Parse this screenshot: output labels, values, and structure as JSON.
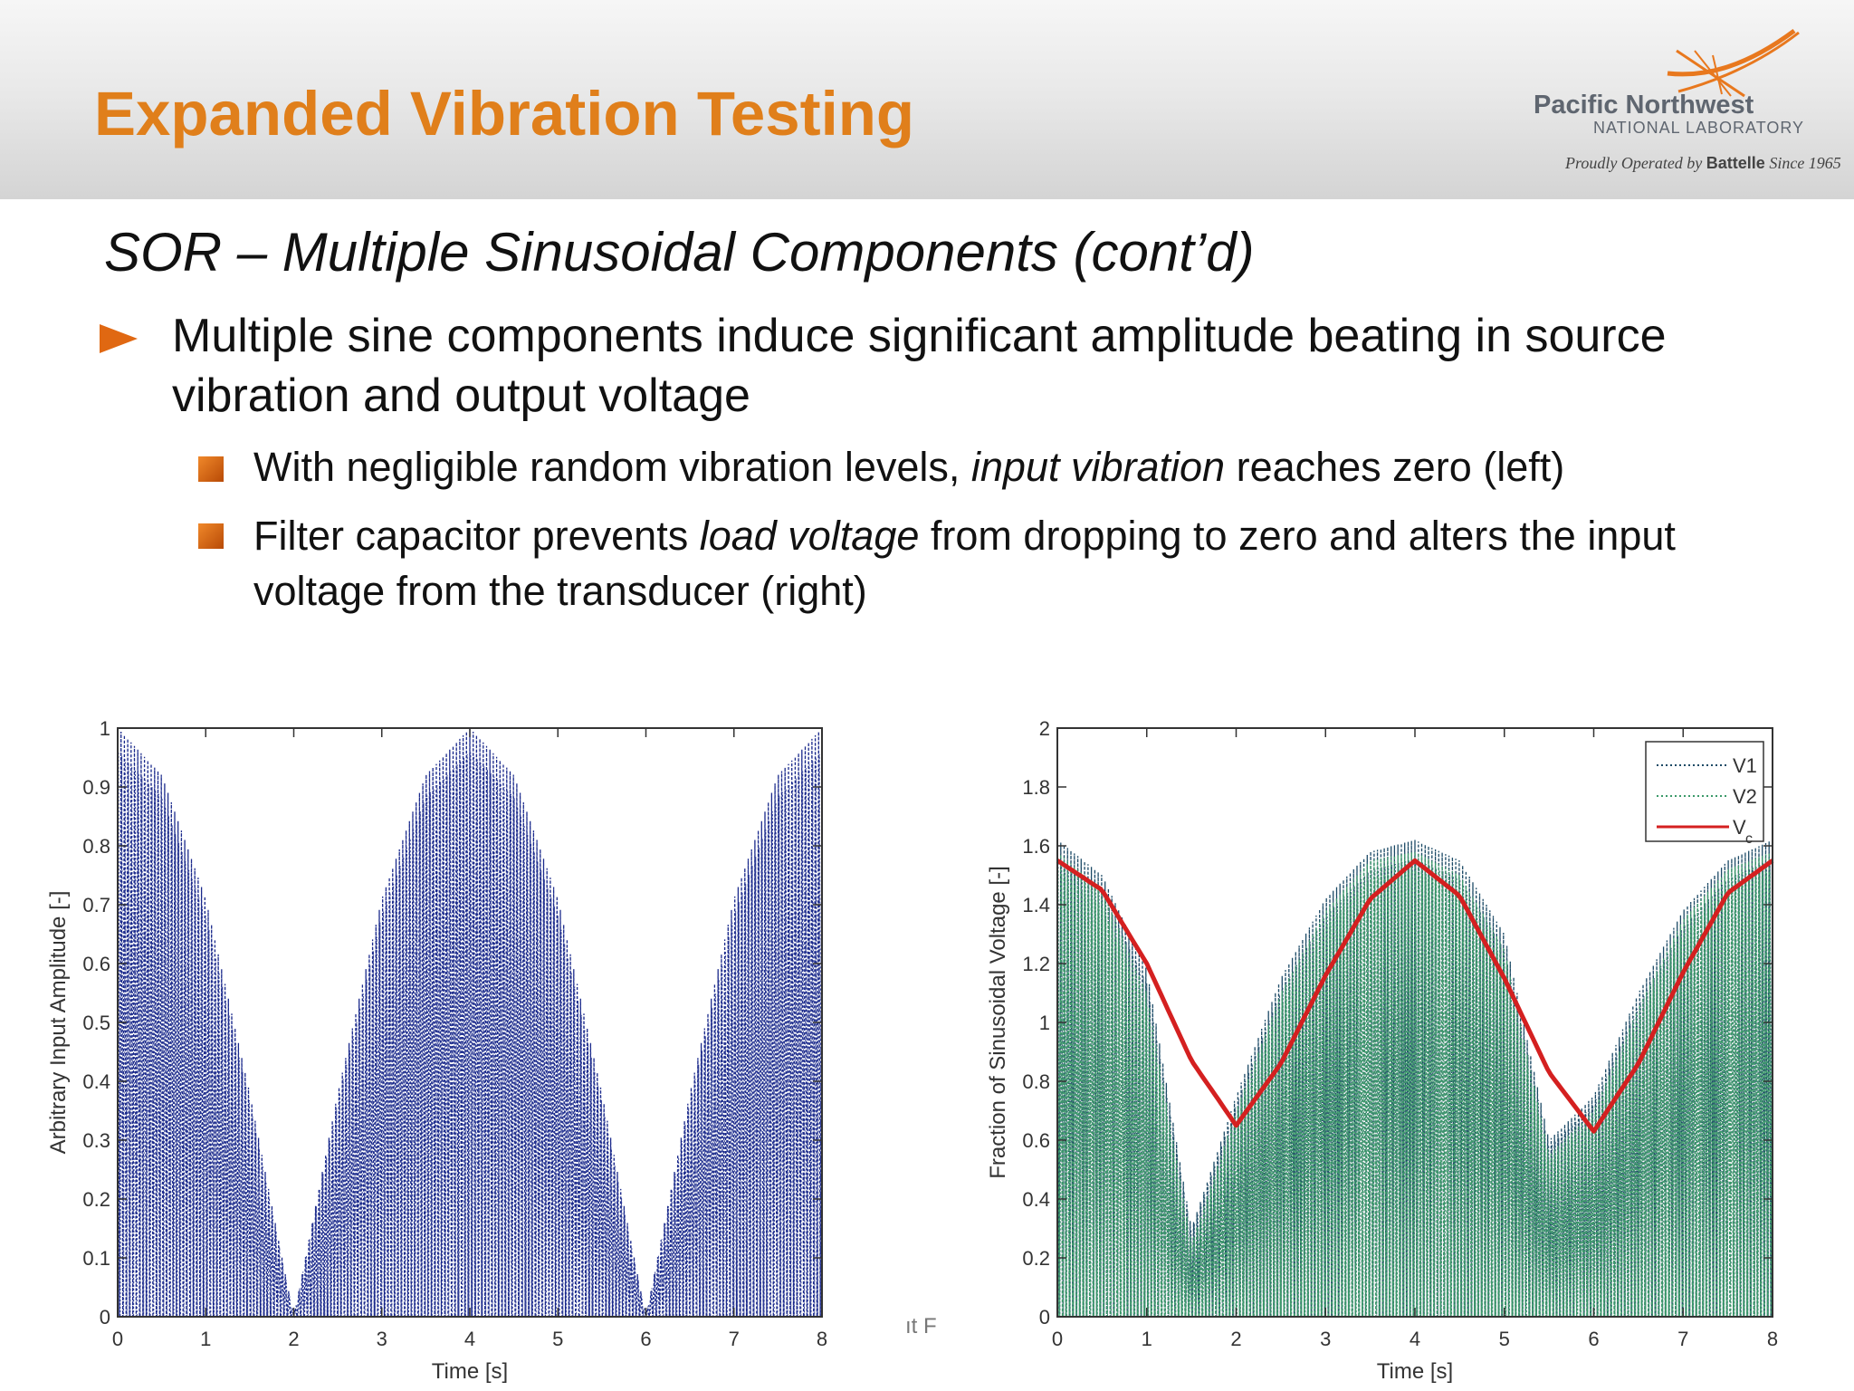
{
  "slide": {
    "title": "Expanded Vibration Testing",
    "subtitle": "SOR – Multiple Sinusoidal Components (cont’d)",
    "bullets": [
      {
        "text": "Multiple sine components induce significant amplitude beating in source vibration and output voltage"
      },
      {
        "pre": "With negligible random vibration levels, ",
        "em": "input vibration",
        "post": " reaches zero (left)"
      },
      {
        "pre": "Filter capacitor prevents ",
        "em": "load voltage",
        "post": " from dropping to zero and alters the input voltage from the transducer (right)"
      }
    ],
    "stray_text": "ıt F"
  },
  "logo": {
    "name": "Pacific Northwest",
    "sub": "NATIONAL LABORATORY",
    "tag_pre": "Proudly Operated by ",
    "tag_brand": "Battelle",
    "tag_post": " Since 1965"
  },
  "colors": {
    "title": "#e07f1b",
    "bullet_icon": "#e06812",
    "input_wave": "#1b2a8c",
    "v1": "#1c4a66",
    "v2": "#3c9a6a",
    "vc": "#d42020"
  },
  "chart_data": [
    {
      "type": "line",
      "title": "",
      "xlabel": "Time [s]",
      "ylabel": "Arbitrary Input Amplitude [-]",
      "xlim": [
        0,
        8
      ],
      "ylim": [
        0,
        1
      ],
      "xticks": [
        "0",
        "1",
        "2",
        "3",
        "4",
        "5",
        "6",
        "7",
        "8"
      ],
      "yticks": [
        "0",
        "0.1",
        "0.2",
        "0.3",
        "0.4",
        "0.5",
        "0.6",
        "0.7",
        "0.8",
        "0.9",
        "1"
      ],
      "grid": false,
      "series": [
        {
          "x": [
            0,
            0.5,
            1,
            1.5,
            2,
            2.5,
            3,
            3.5,
            4,
            4.5,
            5,
            5.5,
            6,
            6.5,
            7,
            7.5,
            8
          ],
          "envelope": [
            1.0,
            0.92,
            0.71,
            0.38,
            0.0,
            0.38,
            0.71,
            0.92,
            1.0,
            0.92,
            0.71,
            0.38,
            0.0,
            0.38,
            0.71,
            0.92,
            1.0
          ]
        }
      ]
    },
    {
      "type": "line",
      "title": "",
      "xlabel": "Time [s]",
      "ylabel": "Fraction of Sinusoidal Voltage [-]",
      "xlim": [
        0,
        8
      ],
      "ylim": [
        0,
        2
      ],
      "xticks": [
        "0",
        "1",
        "2",
        "3",
        "4",
        "5",
        "6",
        "7",
        "8"
      ],
      "yticks": [
        "0",
        "0.2",
        "0.4",
        "0.6",
        "0.8",
        "1",
        "1.2",
        "1.4",
        "1.6",
        "1.8",
        "2"
      ],
      "grid": false,
      "legend": {
        "position": "top-right",
        "entries": [
          "V1",
          "V2",
          "V"
        ],
        "vc_subscript": "c"
      },
      "series": [
        {
          "name": "V1",
          "x": [
            0,
            0.5,
            1,
            1.5,
            2,
            2.5,
            3,
            3.5,
            4,
            4.5,
            5,
            5.5,
            6,
            6.5,
            7,
            7.5,
            8
          ],
          "envelope": [
            1.62,
            1.5,
            1.18,
            0.3,
            0.75,
            1.15,
            1.42,
            1.58,
            1.62,
            1.55,
            1.3,
            0.6,
            0.75,
            1.1,
            1.38,
            1.55,
            1.62
          ]
        },
        {
          "name": "V2",
          "x": [
            0,
            0.5,
            1,
            1.5,
            2,
            2.5,
            3,
            3.5,
            4,
            4.5,
            5,
            5.5,
            6,
            6.5,
            7,
            7.5,
            8
          ],
          "envelope": [
            1.58,
            1.45,
            1.1,
            0.25,
            0.7,
            1.1,
            1.38,
            1.55,
            1.58,
            1.5,
            1.25,
            0.55,
            0.7,
            1.05,
            1.35,
            1.52,
            1.58
          ]
        },
        {
          "name": "V",
          "x": [
            0,
            0.5,
            1,
            1.5,
            2,
            2.5,
            3,
            3.5,
            4,
            4.5,
            5,
            5.5,
            6,
            6.5,
            7,
            7.5,
            8
          ],
          "y": [
            1.55,
            1.45,
            1.2,
            0.87,
            0.65,
            0.86,
            1.16,
            1.42,
            1.55,
            1.43,
            1.15,
            0.83,
            0.63,
            0.86,
            1.17,
            1.44,
            1.55
          ]
        }
      ]
    }
  ]
}
